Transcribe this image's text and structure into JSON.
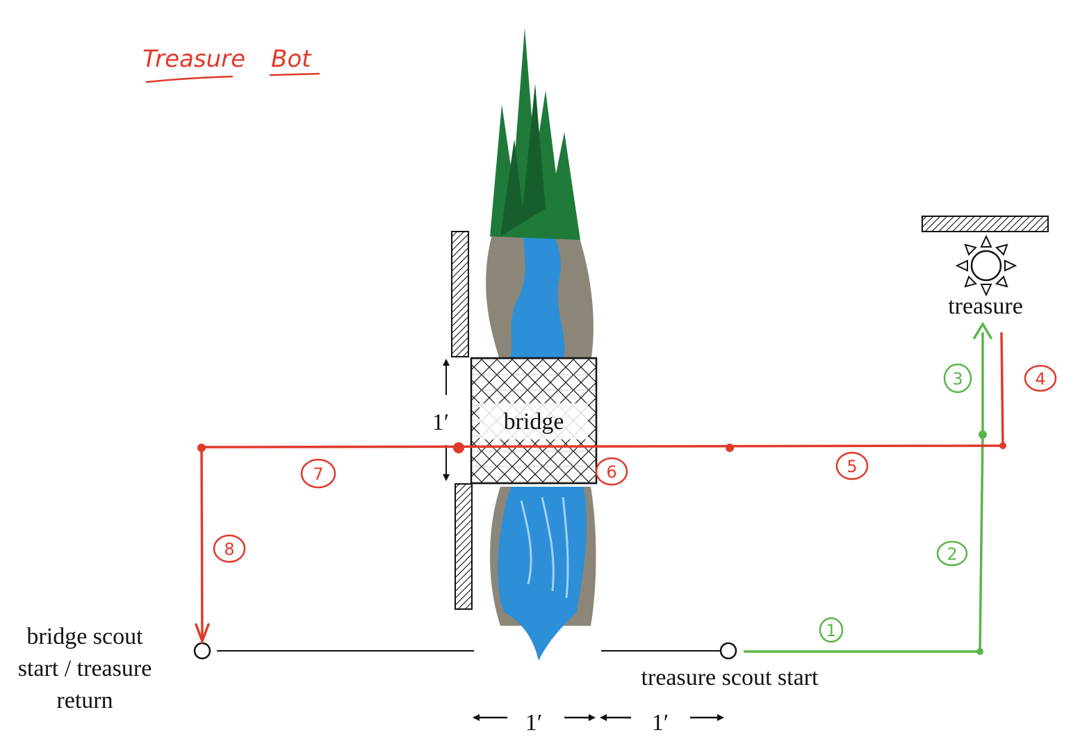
{
  "title": "Treasure Bot",
  "labels": {
    "bridge": "bridge",
    "treasure": "treasure",
    "bridge_scout_start_line1": "bridge scout",
    "bridge_scout_start_line2": "start / treasure",
    "bridge_scout_start_line3": "return",
    "treasure_scout_start": "treasure scout start",
    "bridge_width": "1′",
    "span_left": "1′",
    "span_right": "1′"
  },
  "steps": {
    "s1": "1",
    "s2": "2",
    "s3": "3",
    "s4": "4",
    "s5": "5",
    "s6": "6",
    "s7": "7",
    "s8": "8"
  },
  "icons": [
    "river-icon",
    "pine-trees-icon",
    "sun-treasure-icon"
  ],
  "colors": {
    "red_path": "#e03a2a",
    "green_path": "#5ab548",
    "water": "#2d8fd8",
    "trees": "#1f7a3a",
    "ink": "#111111"
  }
}
